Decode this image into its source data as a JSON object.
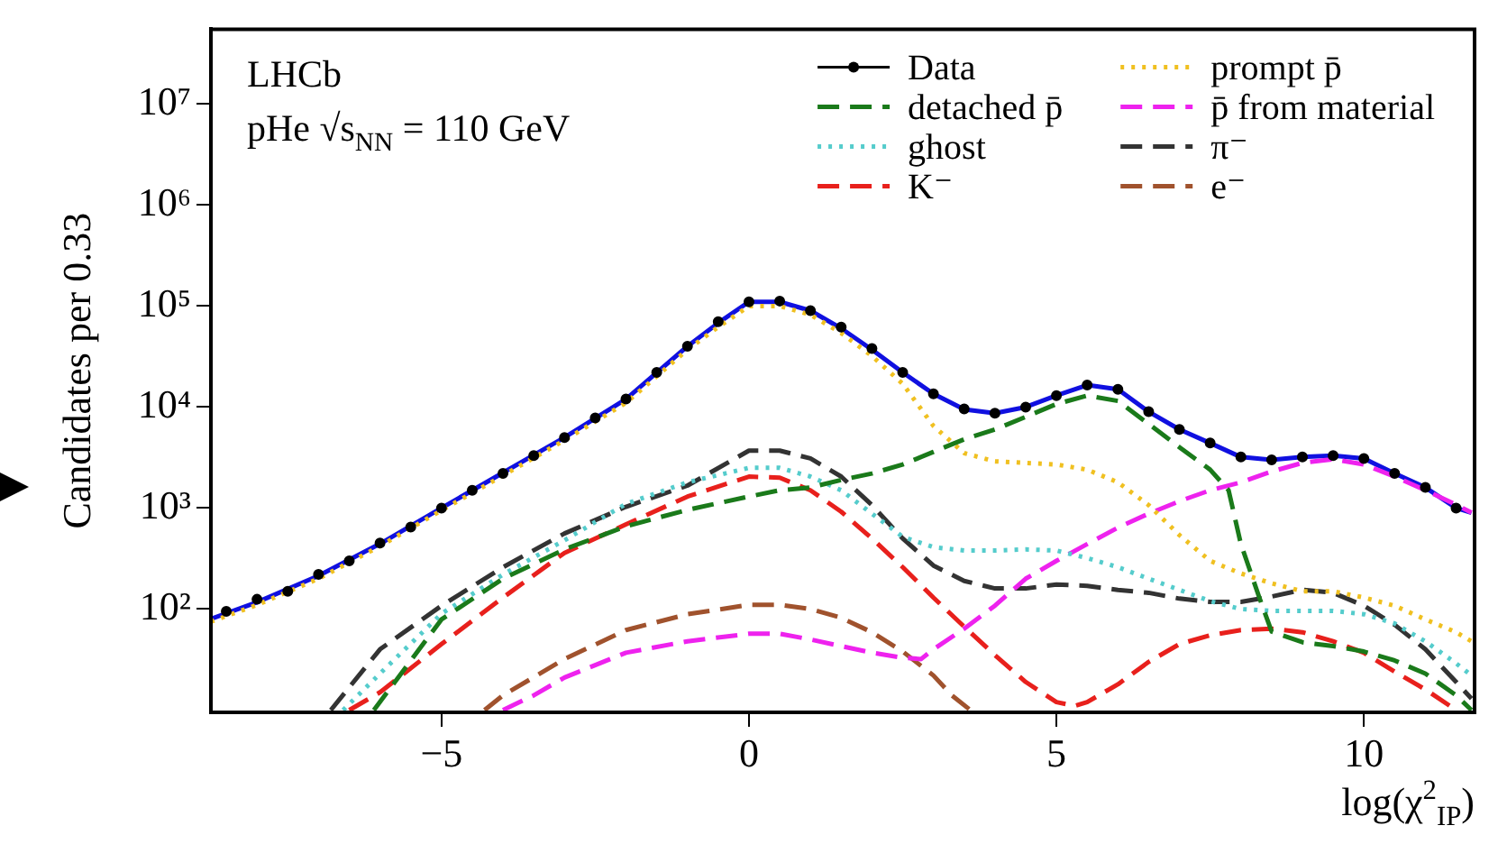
{
  "chart_data": {
    "type": "line",
    "ylabel": "Candidates per 0.33",
    "xlabel": "log(χ$^{2}$$_{IP}$)",
    "annotations": [
      "LHCb",
      "pHe √s$_{NN}$ = 110 GeV"
    ],
    "xlim": [
      -8.75,
      11.8
    ],
    "xticks": [
      -5,
      0,
      5,
      10
    ],
    "ylim": [
      9.5,
      55000000
    ],
    "yticks": [
      {
        "value": 100,
        "label": "10²"
      },
      {
        "value": 1000,
        "label": "10³"
      },
      {
        "value": 10000,
        "label": "10⁴"
      },
      {
        "value": 100000,
        "label": "10⁵"
      },
      {
        "value": 1000000,
        "label": "10⁶"
      },
      {
        "value": 10000000,
        "label": "10⁷"
      }
    ],
    "log": "y",
    "grid": false,
    "legend": "top right",
    "series": [
      {
        "name": "Data",
        "type": "scatter",
        "marker": "circle",
        "color": "#000000",
        "x": [
          -8.5,
          -8,
          -7.5,
          -7,
          -6.5,
          -6,
          -5.5,
          -5,
          -4.5,
          -4,
          -3.5,
          -3,
          -2.5,
          -2,
          -1.5,
          -1,
          -0.5,
          0,
          0.5,
          1,
          1.5,
          2,
          2.5,
          3,
          3.5,
          4,
          4.5,
          5,
          5.5,
          6,
          6.5,
          7,
          7.5,
          8,
          8.5,
          9,
          9.5,
          10,
          10.5,
          11,
          11.5
        ],
        "values": [
          95,
          125,
          150,
          220,
          300,
          450,
          650,
          1000,
          1500,
          2200,
          3300,
          5000,
          7800,
          12000,
          22000,
          40000,
          70000,
          110000,
          112000,
          90000,
          62000,
          38000,
          22000,
          13500,
          9600,
          8700,
          10000,
          13000,
          16500,
          15000,
          9000,
          6000,
          4400,
          3200,
          3000,
          3200,
          3300,
          3100,
          2200,
          1600,
          1000
        ]
      },
      {
        "name": "detached p̄",
        "color": "#1a7a1a",
        "line_style": "dashed",
        "x": [
          -6.1,
          -5,
          -4,
          -3,
          -2,
          -1,
          0,
          0.5,
          1,
          1.5,
          2,
          2.5,
          3,
          3.5,
          4,
          4.5,
          5,
          5.5,
          6,
          6.5,
          7,
          7.5,
          7.8,
          8,
          8.3,
          8.5,
          9,
          9.5,
          10,
          10.5,
          11,
          11.5,
          11.75
        ],
        "values": [
          10,
          79,
          200,
          390,
          660,
          960,
          1300,
          1500,
          1600,
          1900,
          2200,
          2700,
          3600,
          4800,
          6000,
          8000,
          10700,
          13000,
          11500,
          6800,
          4000,
          2400,
          1500,
          440,
          130,
          60,
          47,
          43,
          38,
          31,
          23,
          14,
          10
        ]
      },
      {
        "name": "ghost",
        "color": "#55cccc",
        "line_style": "dotted",
        "x": [
          -6.6,
          -6,
          -5,
          -4,
          -3,
          -2,
          -1,
          0,
          0.5,
          1,
          1.5,
          2,
          2.5,
          3,
          3.5,
          4,
          4.5,
          5,
          5.5,
          6,
          6.5,
          7,
          7.5,
          8,
          8.5,
          9,
          9.5,
          10,
          10.5,
          11,
          11.5,
          11.75
        ],
        "values": [
          10,
          23,
          90,
          220,
          480,
          1100,
          1800,
          2500,
          2500,
          2050,
          1500,
          880,
          520,
          410,
          380,
          380,
          390,
          380,
          320,
          260,
          200,
          155,
          120,
          100,
          96,
          96,
          96,
          89,
          72,
          48,
          29,
          22
        ]
      },
      {
        "name": "K⁻",
        "color": "#e8201c",
        "line_style": "dashed",
        "x": [
          -6.5,
          -6,
          -5,
          -4,
          -3,
          -2,
          -1,
          0,
          0.5,
          1,
          1.5,
          2,
          2.5,
          3,
          3.5,
          4,
          4.5,
          5,
          5.3,
          5.5,
          6,
          6.5,
          7,
          7.5,
          8,
          8.5,
          9,
          9.5,
          10,
          10.5,
          11,
          11.5
        ],
        "values": [
          10,
          15,
          45,
          130,
          360,
          690,
          1300,
          2050,
          2000,
          1500,
          920,
          500,
          260,
          130,
          67,
          35,
          19,
          12,
          11,
          12,
          18,
          30,
          45,
          55,
          62,
          64,
          59,
          48,
          37,
          24,
          16,
          10
        ]
      },
      {
        "name": "prompt p̄",
        "color": "#f0c020",
        "line_style": "dotted",
        "x": [
          -8.75,
          -8,
          -7,
          -6,
          -5,
          -4,
          -3,
          -2,
          -1,
          -0.5,
          0,
          0.5,
          1,
          1.5,
          2,
          2.5,
          3,
          3.5,
          4,
          4.5,
          5,
          5.5,
          6,
          6.5,
          7,
          7.5,
          8,
          8.5,
          9,
          9.5,
          10,
          10.5,
          11,
          11.5,
          11.75
        ],
        "values": [
          75,
          110,
          200,
          420,
          950,
          2100,
          4700,
          11000,
          37000,
          62000,
          100000,
          100000,
          82000,
          54000,
          32000,
          17000,
          6500,
          3500,
          2900,
          2800,
          2700,
          2400,
          1800,
          1070,
          540,
          300,
          225,
          180,
          150,
          150,
          130,
          108,
          79,
          59,
          48
        ]
      },
      {
        "name": "p̄ from material",
        "color": "#ee22ee",
        "line_style": "dashed",
        "x": [
          -4,
          -3.5,
          -3,
          -2,
          -1,
          0,
          0.5,
          1,
          1.5,
          2,
          2.5,
          2.8,
          3,
          3.5,
          4,
          4.5,
          5,
          5.5,
          6,
          6.5,
          7,
          7.5,
          8,
          8.5,
          9,
          9.5,
          10,
          10.5,
          11,
          11.5,
          11.75
        ],
        "values": [
          10,
          14,
          21,
          37,
          48,
          57,
          57,
          50,
          43,
          37,
          33,
          32,
          40,
          64,
          108,
          200,
          300,
          440,
          640,
          880,
          1170,
          1500,
          1800,
          2300,
          2800,
          3050,
          2700,
          2050,
          1500,
          1080,
          900
        ]
      },
      {
        "name": "π⁻",
        "color": "#333333",
        "line_style": "dashed",
        "x": [
          -6.8,
          -6,
          -5,
          -4,
          -3,
          -2,
          -1,
          0,
          0.5,
          1,
          1.5,
          2,
          2.5,
          3,
          3.5,
          4,
          4.5,
          5,
          5.5,
          6,
          6.5,
          7,
          7.5,
          8,
          8.5,
          9,
          9.5,
          10,
          10.5,
          11,
          11.5,
          11.75
        ],
        "values": [
          10,
          40,
          108,
          260,
          560,
          1030,
          1670,
          3700,
          3700,
          3100,
          2050,
          1070,
          500,
          270,
          190,
          160,
          160,
          175,
          170,
          155,
          145,
          127,
          118,
          118,
          133,
          155,
          145,
          108,
          70,
          40,
          19,
          13
        ]
      },
      {
        "name": "e⁻",
        "color": "#a0522d",
        "line_style": "dashed",
        "x": [
          -4.3,
          -4,
          -3,
          -2,
          -1,
          0,
          0.5,
          1,
          1.5,
          2,
          2.5,
          3,
          3.3,
          3.6
        ],
        "values": [
          10,
          14,
          32,
          62,
          89,
          110,
          110,
          100,
          82,
          59,
          38,
          22,
          14,
          10
        ]
      },
      {
        "color": "#1010e0",
        "line_style": "solid",
        "x": [
          -8.75,
          -8,
          -7,
          -6,
          -5,
          -4,
          -3,
          -2,
          -1,
          -0.5,
          0,
          0.5,
          1,
          1.5,
          2,
          2.5,
          3,
          3.5,
          4,
          4.5,
          5,
          5.5,
          6,
          6.5,
          7,
          7.5,
          8,
          8.5,
          9,
          9.5,
          10,
          10.5,
          11,
          11.5,
          11.75
        ],
        "values": [
          80,
          117,
          214,
          443,
          1000,
          2240,
          5000,
          12000,
          40000,
          68000,
          110000,
          110000,
          90000,
          60000,
          37000,
          22000,
          13500,
          9500,
          8700,
          10000,
          13000,
          16500,
          15000,
          9000,
          6000,
          4400,
          3200,
          3000,
          3200,
          3300,
          3100,
          2200,
          1600,
          1000,
          900
        ]
      }
    ]
  }
}
